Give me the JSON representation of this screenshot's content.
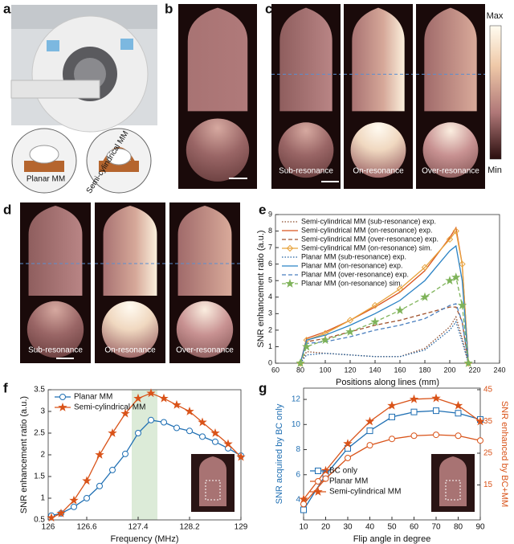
{
  "panels": {
    "letters": [
      "a",
      "b",
      "c",
      "d",
      "e",
      "f",
      "g"
    ],
    "a": {
      "insets": [
        "Planar MM",
        "Semi-cylindrical MM"
      ]
    },
    "c": {
      "conditions": [
        "Sub-resonance",
        "On-resonance",
        "Over-resonance"
      ],
      "colorbar": [
        "Max",
        "Min"
      ]
    },
    "d": {
      "conditions": [
        "Sub-resonance",
        "On-resonance",
        "Over-resonance"
      ]
    }
  },
  "chart_data": [
    {
      "type": "line",
      "xlabel": "Positions along lines (mm)",
      "ylabel": "SNR enhancement ratio (a.u.)",
      "x": [
        80,
        85,
        100,
        120,
        140,
        160,
        180,
        200,
        205,
        210,
        215
      ],
      "xlim": [
        60,
        240
      ],
      "xticks": [
        60,
        80,
        100,
        120,
        140,
        160,
        180,
        200,
        220,
        240
      ],
      "ylim": [
        0,
        9
      ],
      "yticks": [
        0,
        1,
        2,
        3,
        4,
        5,
        6,
        7,
        8,
        9
      ],
      "legend": "top-left",
      "series": [
        {
          "name": "Semi-cylindrical MM (sub-resonance) exp.",
          "color": "#8b4a2b",
          "dash": "dotted",
          "marker": "none",
          "values": [
            0,
            0.7,
            0.6,
            0.5,
            0.4,
            0.4,
            0.9,
            2.2,
            2.8,
            1.5,
            0
          ]
        },
        {
          "name": "Semi-cylindrical MM (on-resonance) exp.",
          "color": "#d9541e",
          "dash": "solid",
          "marker": "none",
          "values": [
            0,
            1.5,
            1.9,
            2.6,
            3.4,
            4.3,
            5.6,
            7.6,
            8.2,
            6,
            0
          ]
        },
        {
          "name": "Semi-cylindrical MM (over-resonance) exp.",
          "color": "#a0522d",
          "dash": "dashed",
          "marker": "none",
          "values": [
            0,
            1.3,
            1.5,
            1.9,
            2.3,
            2.6,
            3.0,
            3.4,
            3.4,
            2.5,
            0
          ]
        },
        {
          "name": "Semi-cylindrical MM (on-resonance) sim.",
          "color": "#e8a33c",
          "dash": "solid",
          "marker": "diamond",
          "values": [
            0,
            1.4,
            1.8,
            2.6,
            3.5,
            4.5,
            5.8,
            7.5,
            8.0,
            6,
            0
          ]
        },
        {
          "name": "Planar MM (sub-resonance) exp.",
          "color": "#20609f",
          "dash": "dotted",
          "marker": "none",
          "values": [
            0,
            0.5,
            0.6,
            0.5,
            0.4,
            0.4,
            0.8,
            2.0,
            2.5,
            1.3,
            0
          ]
        },
        {
          "name": "Planar MM (on-resonance) exp.",
          "color": "#2b83c5",
          "dash": "solid",
          "marker": "none",
          "values": [
            0,
            1.4,
            1.7,
            2.3,
            3.0,
            3.8,
            5.0,
            6.8,
            7.1,
            5,
            0
          ]
        },
        {
          "name": "Planar MM (over-resonance) exp.",
          "color": "#4a7fbf",
          "dash": "dashed",
          "marker": "none",
          "values": [
            0,
            1.2,
            1.3,
            1.6,
            2.0,
            2.3,
            2.7,
            3.5,
            3.6,
            2.5,
            0
          ]
        },
        {
          "name": "Planar MM (on-resonance) sim.",
          "color": "#7fb35a",
          "dash": "dashed",
          "marker": "star",
          "values": [
            0,
            1.0,
            1.4,
            1.9,
            2.5,
            3.2,
            4.0,
            5.0,
            5.2,
            3.5,
            0
          ]
        }
      ]
    },
    {
      "type": "line",
      "xlabel": "Frequency (MHz)",
      "ylabel": "SNR enhancement ratio (a.u.)",
      "x": [
        126.05,
        126.2,
        126.4,
        126.6,
        126.8,
        127.0,
        127.2,
        127.4,
        127.6,
        127.8,
        128.0,
        128.2,
        128.4,
        128.6,
        128.8,
        129
      ],
      "xlim": [
        126,
        129
      ],
      "xticks": [
        126,
        126.6,
        127.4,
        128.2,
        129
      ],
      "ylim": [
        0.5,
        3.5
      ],
      "yticks": [
        0.5,
        1,
        1.5,
        2,
        2.5,
        3,
        3.5
      ],
      "legend": "top-left",
      "shaded_xrange": [
        127.3,
        127.7
      ],
      "shaded_color": "#dcebd8",
      "series": [
        {
          "name": "Planar MM",
          "color": "#1f6fb3",
          "dash": "solid",
          "marker": "circle",
          "values": [
            0.6,
            0.65,
            0.8,
            1.0,
            1.28,
            1.65,
            2.02,
            2.5,
            2.8,
            2.75,
            2.62,
            2.55,
            2.42,
            2.3,
            2.15,
            1.98
          ]
        },
        {
          "name": "Semi-cylindrical MM",
          "color": "#d95319",
          "dash": "solid",
          "marker": "star",
          "values": [
            0.55,
            0.65,
            0.95,
            1.4,
            2.0,
            2.5,
            2.95,
            3.3,
            3.42,
            3.3,
            3.15,
            3.0,
            2.75,
            2.5,
            2.25,
            1.95
          ]
        }
      ]
    },
    {
      "type": "line",
      "xlabel": "Flip angle in degree",
      "ylabel": "SNR acquired by BC only",
      "y2label": "SNR enhanced by BC+MM",
      "x": [
        10,
        20,
        30,
        40,
        50,
        60,
        70,
        80,
        90
      ],
      "xlim": [
        10,
        90
      ],
      "xticks": [
        10,
        20,
        30,
        40,
        50,
        60,
        70,
        80,
        90
      ],
      "ylim": [
        2.4,
        12.9
      ],
      "yticks": [
        4,
        6,
        8,
        10,
        12
      ],
      "y2lim": [
        4,
        45.5
      ],
      "y2ticks": [
        15,
        25,
        35,
        45
      ],
      "legend": "bottom-left",
      "series": [
        {
          "name": "BC only",
          "color": "#1f6fb3",
          "dash": "solid",
          "marker": "square",
          "values": [
            3.2,
            6.0,
            8.1,
            9.5,
            10.6,
            11.0,
            11.1,
            10.9,
            10.4
          ]
        },
        {
          "name": "Planar MM",
          "color": "#d95319",
          "dash": "solid",
          "marker": "circle",
          "axis": "y2",
          "values": [
            9,
            17,
            23.5,
            27.5,
            29.5,
            30.5,
            30.8,
            30.5,
            29
          ]
        },
        {
          "name": "Semi-cylindrical MM",
          "color": "#d95319",
          "dash": "solid",
          "marker": "star",
          "axis": "y2",
          "values": [
            10.5,
            19.5,
            28,
            35,
            40,
            42,
            42.3,
            40,
            35
          ]
        }
      ]
    }
  ]
}
